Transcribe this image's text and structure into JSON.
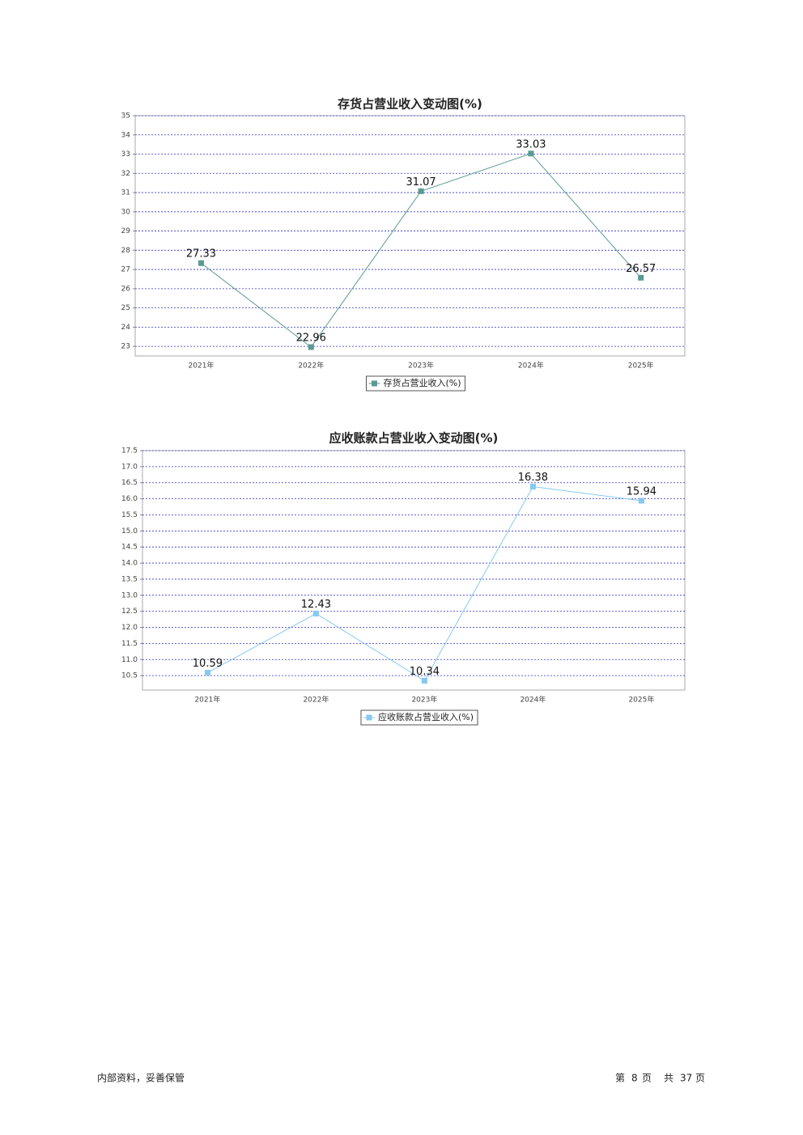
{
  "chart_data": [
    {
      "type": "line",
      "title": "存货占营业收入变动图(%)",
      "categories": [
        "2021年",
        "2022年",
        "2023年",
        "2024年",
        "2025年"
      ],
      "series": [
        {
          "name": "存货占营业收入(%)",
          "color": "#5a9a92",
          "values": [
            27.33,
            22.96,
            31.07,
            33.03,
            26.57
          ]
        }
      ],
      "ylim": [
        22.5,
        35
      ],
      "yticks": [
        23,
        24,
        25,
        26,
        27,
        28,
        29,
        30,
        31,
        32,
        33,
        34,
        35
      ],
      "grid": true
    },
    {
      "type": "line",
      "title": "应收账款占营业收入变动图(%)",
      "categories": [
        "2021年",
        "2022年",
        "2023年",
        "2024年",
        "2025年"
      ],
      "series": [
        {
          "name": "应收账款占营业收入(%)",
          "color": "#87c8f0",
          "values": [
            10.59,
            12.43,
            10.34,
            16.38,
            15.94
          ]
        }
      ],
      "ylim": [
        10.05,
        17.5
      ],
      "yticks": [
        10.5,
        {
          "value": 11,
          "label": "11.0"
        },
        11.5,
        {
          "value": 12,
          "label": "12.0"
        },
        12.5,
        {
          "value": 13,
          "label": "13.0"
        },
        13.5,
        {
          "value": 14,
          "label": "14.0"
        },
        14.5,
        {
          "value": 15,
          "label": "15.0"
        },
        15.5,
        {
          "value": 16,
          "label": "16.0"
        },
        16.5,
        {
          "value": 17,
          "label": "17.0"
        },
        17.5
      ],
      "grid": true
    }
  ],
  "footer": {
    "left": "内部资料，妥善保管",
    "page_prefix": "第",
    "page": 8,
    "page_suffix": "页",
    "total_prefix": "共",
    "total": 37,
    "total_suffix": "页"
  }
}
